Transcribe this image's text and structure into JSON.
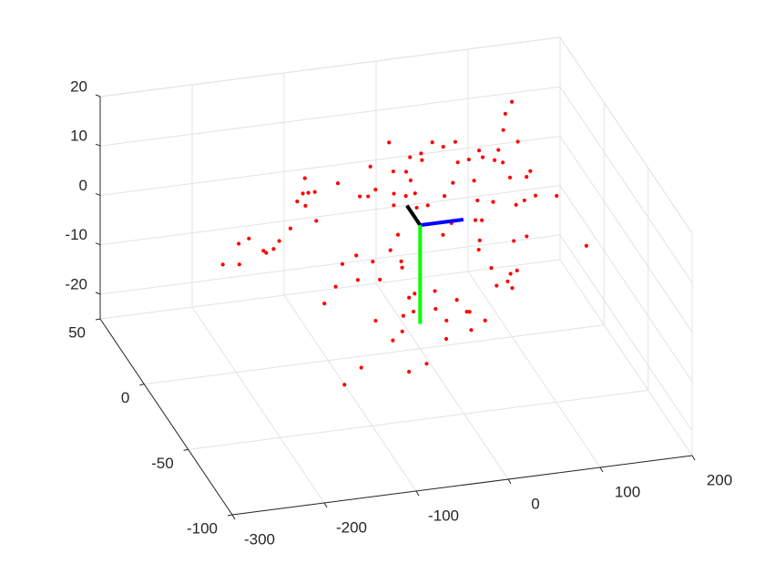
{
  "chart_data": {
    "type": "scatter3d",
    "xlim": [
      -300,
      200
    ],
    "ylim": [
      -100,
      50
    ],
    "zlim": [
      -25,
      20
    ],
    "xticks": [
      -300,
      -200,
      -100,
      0,
      100,
      200
    ],
    "yticks": [
      -100,
      -50,
      0,
      50
    ],
    "zticks": [
      -20,
      -10,
      0,
      10,
      20
    ],
    "grid": true,
    "series": [
      {
        "color": "#ff0000",
        "x": [
          139,
          128,
          121,
          -7,
          40,
          50,
          65,
          88,
          109,
          133,
          24,
          11,
          90,
          102,
          61,
          74,
          110,
          -35,
          -12,
          2,
          23,
          137,
          131,
          113,
          49,
          4,
          73,
          -76,
          -110,
          -111,
          -104,
          -117,
          -126,
          -118,
          -37,
          -56,
          -47,
          -18,
          5,
          -6,
          36,
          70,
          121,
          135,
          158,
          15,
          -22,
          87,
          111,
          -111,
          -142,
          2,
          62,
          69,
          35,
          -27,
          22,
          112,
          60,
          97,
          56,
          -158,
          -190,
          -203,
          174,
          -167,
          -178,
          -176,
          -227,
          -209,
          -79,
          -40,
          -63,
          -32,
          -97,
          -33,
          91,
          83,
          64,
          -61,
          -85,
          77,
          64,
          80,
          -111,
          -5,
          -28,
          -35,
          16,
          -129,
          23,
          -35,
          -10,
          -47,
          26,
          40,
          -79,
          -2,
          -53,
          22,
          -66,
          -8,
          -37,
          -109,
          -59,
          -133
        ],
        "y": [
          41,
          37,
          32,
          28,
          28,
          26,
          28,
          25,
          25,
          28,
          24,
          23,
          23,
          22,
          21,
          22,
          21,
          20,
          18,
          18,
          22,
          18,
          16,
          16,
          14,
          15,
          15,
          14,
          16,
          11,
          11,
          11,
          8,
          7,
          12,
          10,
          10,
          11,
          11,
          10,
          10,
          8,
          8,
          10,
          10,
          7,
          7,
          8,
          7,
          2,
          -1,
          6,
          2,
          2,
          1,
          -3,
          -3,
          -4,
          -5,
          -5,
          -8,
          -5,
          -4,
          -6,
          -7,
          -8,
          -8,
          -9,
          -13,
          -13,
          -10,
          -8,
          -12,
          -12,
          -13,
          -14,
          -15,
          -16,
          -14,
          -18,
          -18,
          -19,
          -20,
          -21,
          -20,
          -22,
          -23,
          -24,
          -25,
          -26,
          -29,
          -29,
          -28,
          -30,
          -29,
          -32,
          -32,
          -32,
          -35,
          -35,
          -38,
          -38,
          -46,
          -47,
          -49,
          -53
        ],
        "z": [
          10.8,
          9.7,
          7.9,
          9.5,
          8.4,
          7.8,
          7.9,
          6.4,
          6.0,
          6.3,
          7.6,
          7.4,
          5.5,
          4.9,
          5.7,
          5.7,
          4.5,
          7.4,
          6.4,
          6.0,
          6.8,
          2.9,
          2.4,
          2.7,
          3.7,
          5.0,
          3.3,
          6.6,
          7.9,
          6.3,
          6.3,
          6.3,
          5.7,
          4.9,
          4.9,
          4.5,
          4.3,
          3.9,
          3.4,
          3.4,
          2.4,
          1.2,
          0.0,
          0.1,
          -0.5,
          1.8,
          2.7,
          0.5,
          -0.4,
          3.0,
          3.0,
          1.9,
          -1.0,
          -1.2,
          -0.7,
          -0.5,
          -1.7,
          -3.9,
          -3.2,
          -4.2,
          -4.2,
          1.9,
          2.9,
          2.7,
          -6.5,
          1.3,
          1.2,
          1.0,
          0.9,
          0.5,
          -1.6,
          -2.0,
          -2.7,
          -3.4,
          -2.1,
          -4.1,
          -7.4,
          -7.6,
          -6.5,
          -4.8,
          -4.3,
          -8.2,
          -8.5,
          -9.1,
          -4.5,
          -7.4,
          -7.1,
          -7.5,
          -8.9,
          -5.9,
          -10.4,
          -9.0,
          -9.3,
          -9.3,
          -10.5,
          -11.8,
          -9.0,
          -10.8,
          -11.0,
          -12.5,
          -11.7,
          -12.8,
          -15.0,
          -13.8,
          -15.3,
          -15.1
        ]
      }
    ],
    "lines": [
      {
        "color": "#000000",
        "x": [
          0,
          0
        ],
        "y": [
          0,
          15
        ],
        "z": [
          0,
          0
        ]
      },
      {
        "color": "#0000ff",
        "x": [
          0,
          47
        ],
        "y": [
          0,
          0
        ],
        "z": [
          0,
          0
        ]
      },
      {
        "color": "#00ff00",
        "x": [
          0,
          0
        ],
        "y": [
          0,
          0
        ],
        "z": [
          0,
          -20
        ]
      }
    ]
  }
}
